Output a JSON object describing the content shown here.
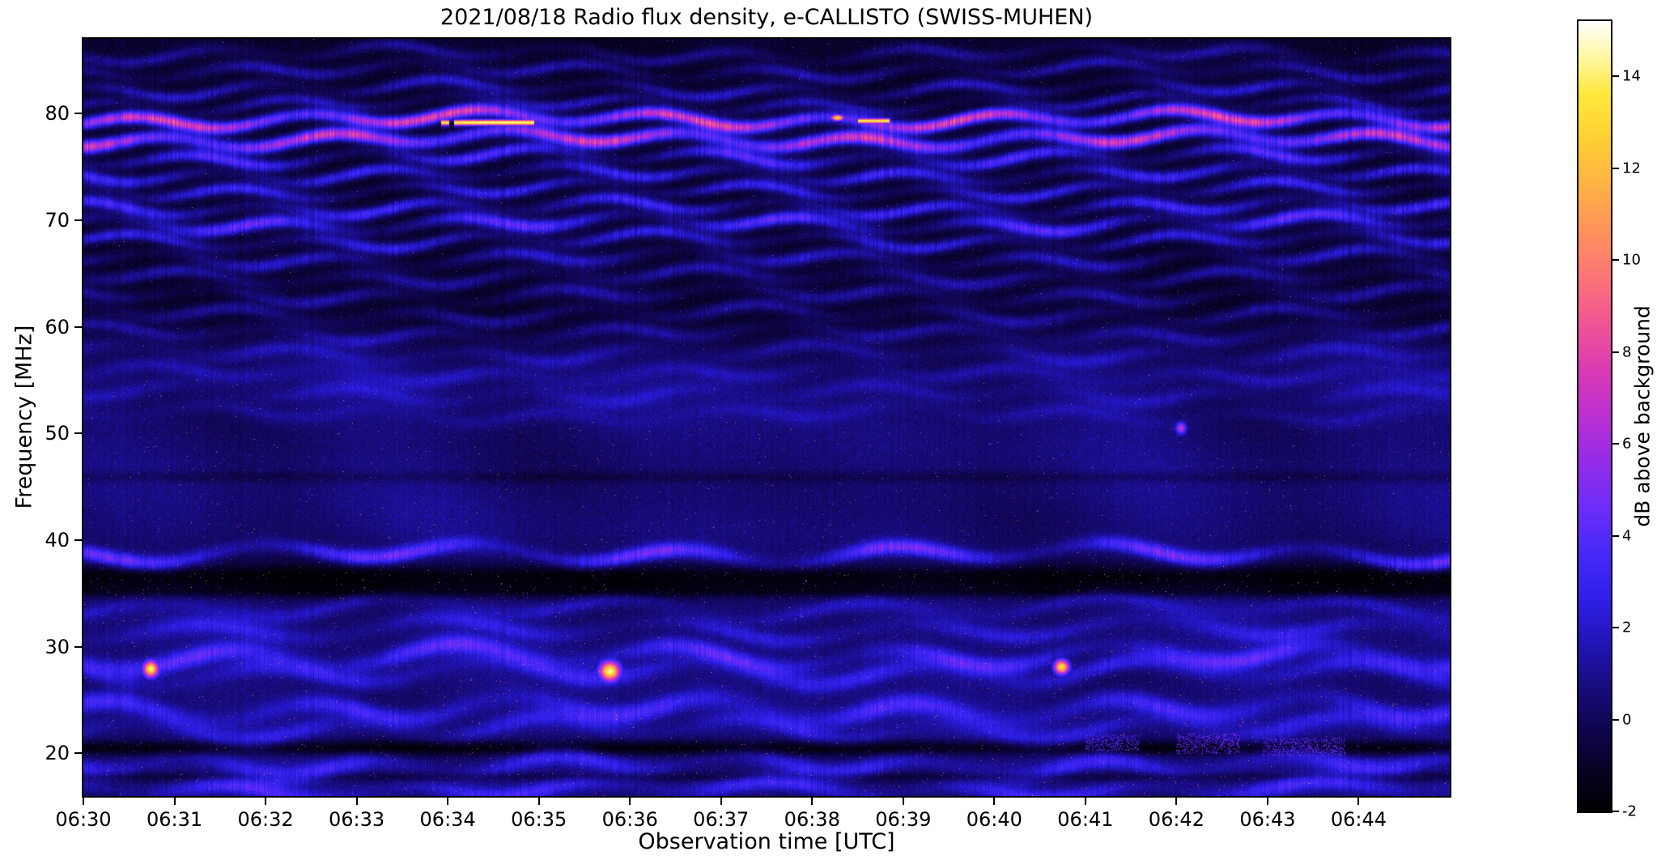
{
  "chart_data": {
    "type": "heatmap",
    "title": "2021/08/18  Radio flux density, e-CALLISTO (SWISS-MUHEN)",
    "xlabel": "Observation time [UTC]",
    "ylabel": "Frequency [MHz]",
    "colorbar_label": "dB above background",
    "x_ticks": [
      {
        "label": "06:30",
        "minute": 0
      },
      {
        "label": "06:31",
        "minute": 1
      },
      {
        "label": "06:32",
        "minute": 2
      },
      {
        "label": "06:33",
        "minute": 3
      },
      {
        "label": "06:34",
        "minute": 4
      },
      {
        "label": "06:35",
        "minute": 5
      },
      {
        "label": "06:36",
        "minute": 6
      },
      {
        "label": "06:37",
        "minute": 7
      },
      {
        "label": "06:38",
        "minute": 8
      },
      {
        "label": "06:39",
        "minute": 9
      },
      {
        "label": "06:40",
        "minute": 10
      },
      {
        "label": "06:41",
        "minute": 11
      },
      {
        "label": "06:42",
        "minute": 12
      },
      {
        "label": "06:43",
        "minute": 13
      },
      {
        "label": "06:44",
        "minute": 14
      }
    ],
    "x_range_minutes": [
      0,
      15
    ],
    "y_ticks_mhz": [
      20,
      30,
      40,
      50,
      60,
      70,
      80
    ],
    "y_range_mhz": [
      16,
      87
    ],
    "colorbar_ticks": [
      -2,
      0,
      2,
      4,
      6,
      8,
      10,
      12,
      14
    ],
    "value_range_db": [
      -2,
      15.2
    ],
    "colormap_anchors": [
      {
        "v": -2.0,
        "c": "#000002"
      },
      {
        "v": -1.2,
        "c": "#06021f"
      },
      {
        "v": -0.4,
        "c": "#0d0547"
      },
      {
        "v": 0.6,
        "c": "#170b78"
      },
      {
        "v": 1.6,
        "c": "#2114b4"
      },
      {
        "v": 2.6,
        "c": "#2f1fe8"
      },
      {
        "v": 3.6,
        "c": "#4629f8"
      },
      {
        "v": 4.6,
        "c": "#6d2df8"
      },
      {
        "v": 5.6,
        "c": "#952ce8"
      },
      {
        "v": 6.6,
        "c": "#bc2fd2"
      },
      {
        "v": 7.6,
        "c": "#da3bb4"
      },
      {
        "v": 8.6,
        "c": "#ef5595"
      },
      {
        "v": 9.6,
        "c": "#fb7378"
      },
      {
        "v": 10.6,
        "c": "#ff925c"
      },
      {
        "v": 11.6,
        "c": "#ffb145"
      },
      {
        "v": 12.6,
        "c": "#ffcf35"
      },
      {
        "v": 13.6,
        "c": "#ffe83c"
      },
      {
        "v": 14.4,
        "c": "#fff7a0"
      },
      {
        "v": 15.2,
        "c": "#ffffff"
      }
    ],
    "wave": {
      "period_min": 1.9,
      "amp_mhz": 0.55,
      "slow_period_min": 7.5,
      "slow_amp_mhz": 0.35
    },
    "base_levels": [
      {
        "f": 16,
        "db": 0.3
      },
      {
        "f": 19,
        "db": 0.4
      },
      {
        "f": 22,
        "db": 0.55
      },
      {
        "f": 35,
        "db": 0.45
      },
      {
        "f": 38.5,
        "db": 0.2
      },
      {
        "f": 41,
        "db": 0.5
      },
      {
        "f": 55,
        "db": 0.45
      },
      {
        "f": 58,
        "db": -0.2
      },
      {
        "f": 61,
        "db": -1.0
      },
      {
        "f": 82,
        "db": -1.05
      },
      {
        "f": 87,
        "db": -0.9
      }
    ],
    "mottle_levels": [
      {
        "f": 16,
        "a": 0.45
      },
      {
        "f": 21,
        "a": 0.6
      },
      {
        "f": 34,
        "a": 0.6
      },
      {
        "f": 38,
        "a": 0.5
      },
      {
        "f": 42,
        "a": 0.75
      },
      {
        "f": 56,
        "a": 0.75
      },
      {
        "f": 60,
        "a": 0.3
      },
      {
        "f": 87,
        "a": 0.3
      }
    ],
    "fringe_bands": [
      {
        "f": 85.6,
        "amp": 1.8,
        "w": 0.4
      },
      {
        "f": 84.0,
        "amp": 2.2,
        "w": 0.4
      },
      {
        "f": 82.3,
        "amp": 2.6,
        "w": 0.4
      },
      {
        "f": 80.9,
        "amp": 2.4,
        "w": 0.38
      },
      {
        "f": 79.45,
        "amp": 8.0,
        "w": 0.42
      },
      {
        "f": 77.6,
        "amp": 7.5,
        "w": 0.45
      },
      {
        "f": 75.9,
        "amp": 4.2,
        "w": 0.42
      },
      {
        "f": 74.3,
        "amp": 3.6,
        "w": 0.42
      },
      {
        "f": 72.8,
        "amp": 3.4,
        "w": 0.4
      },
      {
        "f": 71.2,
        "amp": 3.8,
        "w": 0.42
      },
      {
        "f": 69.7,
        "amp": 4.6,
        "w": 0.45
      },
      {
        "f": 68.1,
        "amp": 3.2,
        "w": 0.42
      },
      {
        "f": 66.4,
        "amp": 2.6,
        "w": 0.45
      },
      {
        "f": 64.7,
        "amp": 2.2,
        "w": 0.45
      },
      {
        "f": 63.0,
        "amp": 2.0,
        "w": 0.45
      },
      {
        "f": 61.2,
        "amp": 1.9,
        "w": 0.45
      },
      {
        "f": 59.4,
        "amp": 1.7,
        "w": 0.45
      },
      {
        "f": 57.5,
        "amp": 1.5,
        "w": 0.5
      },
      {
        "f": 55.6,
        "amp": 1.3,
        "w": 0.5
      },
      {
        "f": 53.7,
        "amp": 1.1,
        "w": 0.5
      },
      {
        "f": 51.8,
        "amp": 0.9,
        "w": 0.5
      },
      {
        "f": 38.7,
        "amp": 4.0,
        "w": 0.5,
        "wamp": 0.7,
        "period": 2.3
      },
      {
        "f": 33.6,
        "amp": 1.4,
        "w": 0.5,
        "wamp": 0.8,
        "period": 2.6
      },
      {
        "f": 31.6,
        "amp": 1.8,
        "w": 0.55,
        "wamp": 0.8,
        "period": 2.6
      },
      {
        "f": 29.1,
        "amp": 3.2,
        "w": 0.6,
        "wamp": 0.9,
        "period": 2.4
      },
      {
        "f": 27.6,
        "amp": 2.2,
        "w": 0.6,
        "wamp": 0.9,
        "period": 2.4
      },
      {
        "f": 24.1,
        "amp": 2.8,
        "w": 0.65,
        "wamp": 0.9,
        "period": 2.2
      },
      {
        "f": 22.3,
        "amp": 1.8,
        "w": 0.6,
        "wamp": 0.8,
        "period": 2.2
      },
      {
        "f": 18.9,
        "amp": 2.6,
        "w": 0.6,
        "wamp": 0.7,
        "period": 2.0
      },
      {
        "f": 16.6,
        "amp": 2.8,
        "w": 0.55,
        "wamp": 0.5,
        "period": 2.0
      }
    ],
    "dark_lanes": [
      {
        "f": 36.4,
        "depth": 2.2,
        "w": 0.9
      },
      {
        "f": 35.1,
        "depth": 1.0,
        "w": 0.4
      },
      {
        "f": 45.9,
        "depth": 0.7,
        "w": 0.4
      },
      {
        "f": 20.5,
        "depth": 2.0,
        "w": 0.5
      },
      {
        "f": 17.8,
        "depth": 0.9,
        "w": 0.3
      }
    ],
    "speckle_regions": [
      {
        "f0": 68,
        "f1": 87,
        "density": 0.0013,
        "vmax": 9.5
      },
      {
        "f0": 55,
        "f1": 68,
        "density": 0.0016,
        "vmax": 9.5
      },
      {
        "f0": 38,
        "f1": 55,
        "density": 0.003,
        "vmax": 10.5
      },
      {
        "f0": 21,
        "f1": 38,
        "density": 0.005,
        "vmax": 11.5
      },
      {
        "f0": 16,
        "f1": 21,
        "density": 0.006,
        "vmax": 11.5
      }
    ],
    "bright_events": [
      {
        "kind": "segment",
        "f": 79.15,
        "t0": 4.07,
        "t1": 4.95,
        "df": 0.18,
        "v": 14.2
      },
      {
        "kind": "segment",
        "f": 79.15,
        "t0": 3.93,
        "t1": 4.02,
        "df": 0.18,
        "v": 13.5
      },
      {
        "kind": "segment",
        "f": 79.3,
        "t0": 8.5,
        "t1": 8.85,
        "df": 0.16,
        "v": 13.8
      },
      {
        "kind": "spot",
        "f": 79.6,
        "t": 8.28,
        "dt": 0.05,
        "df": 0.2,
        "v": 14.0
      },
      {
        "kind": "spot",
        "f": 27.9,
        "t": 0.74,
        "dt": 0.06,
        "df": 0.55,
        "v": 14.3
      },
      {
        "kind": "spot",
        "f": 27.7,
        "t": 5.78,
        "dt": 0.08,
        "df": 0.65,
        "v": 14.5
      },
      {
        "kind": "spot",
        "f": 28.1,
        "t": 10.74,
        "dt": 0.06,
        "df": 0.5,
        "v": 13.8
      },
      {
        "kind": "spot",
        "f": 50.5,
        "t": 12.05,
        "dt": 0.04,
        "df": 0.4,
        "v": 7.0
      },
      {
        "kind": "patch",
        "f": 20.9,
        "t": 12.35,
        "dt": 0.35,
        "df": 0.9,
        "v": 6.0
      },
      {
        "kind": "patch",
        "f": 20.6,
        "t": 13.4,
        "dt": 0.45,
        "df": 0.8,
        "v": 5.5
      },
      {
        "kind": "patch",
        "f": 21.0,
        "t": 11.3,
        "dt": 0.3,
        "df": 0.7,
        "v": 5.0
      }
    ],
    "legend_position": "right-colorbar",
    "grid": false
  }
}
